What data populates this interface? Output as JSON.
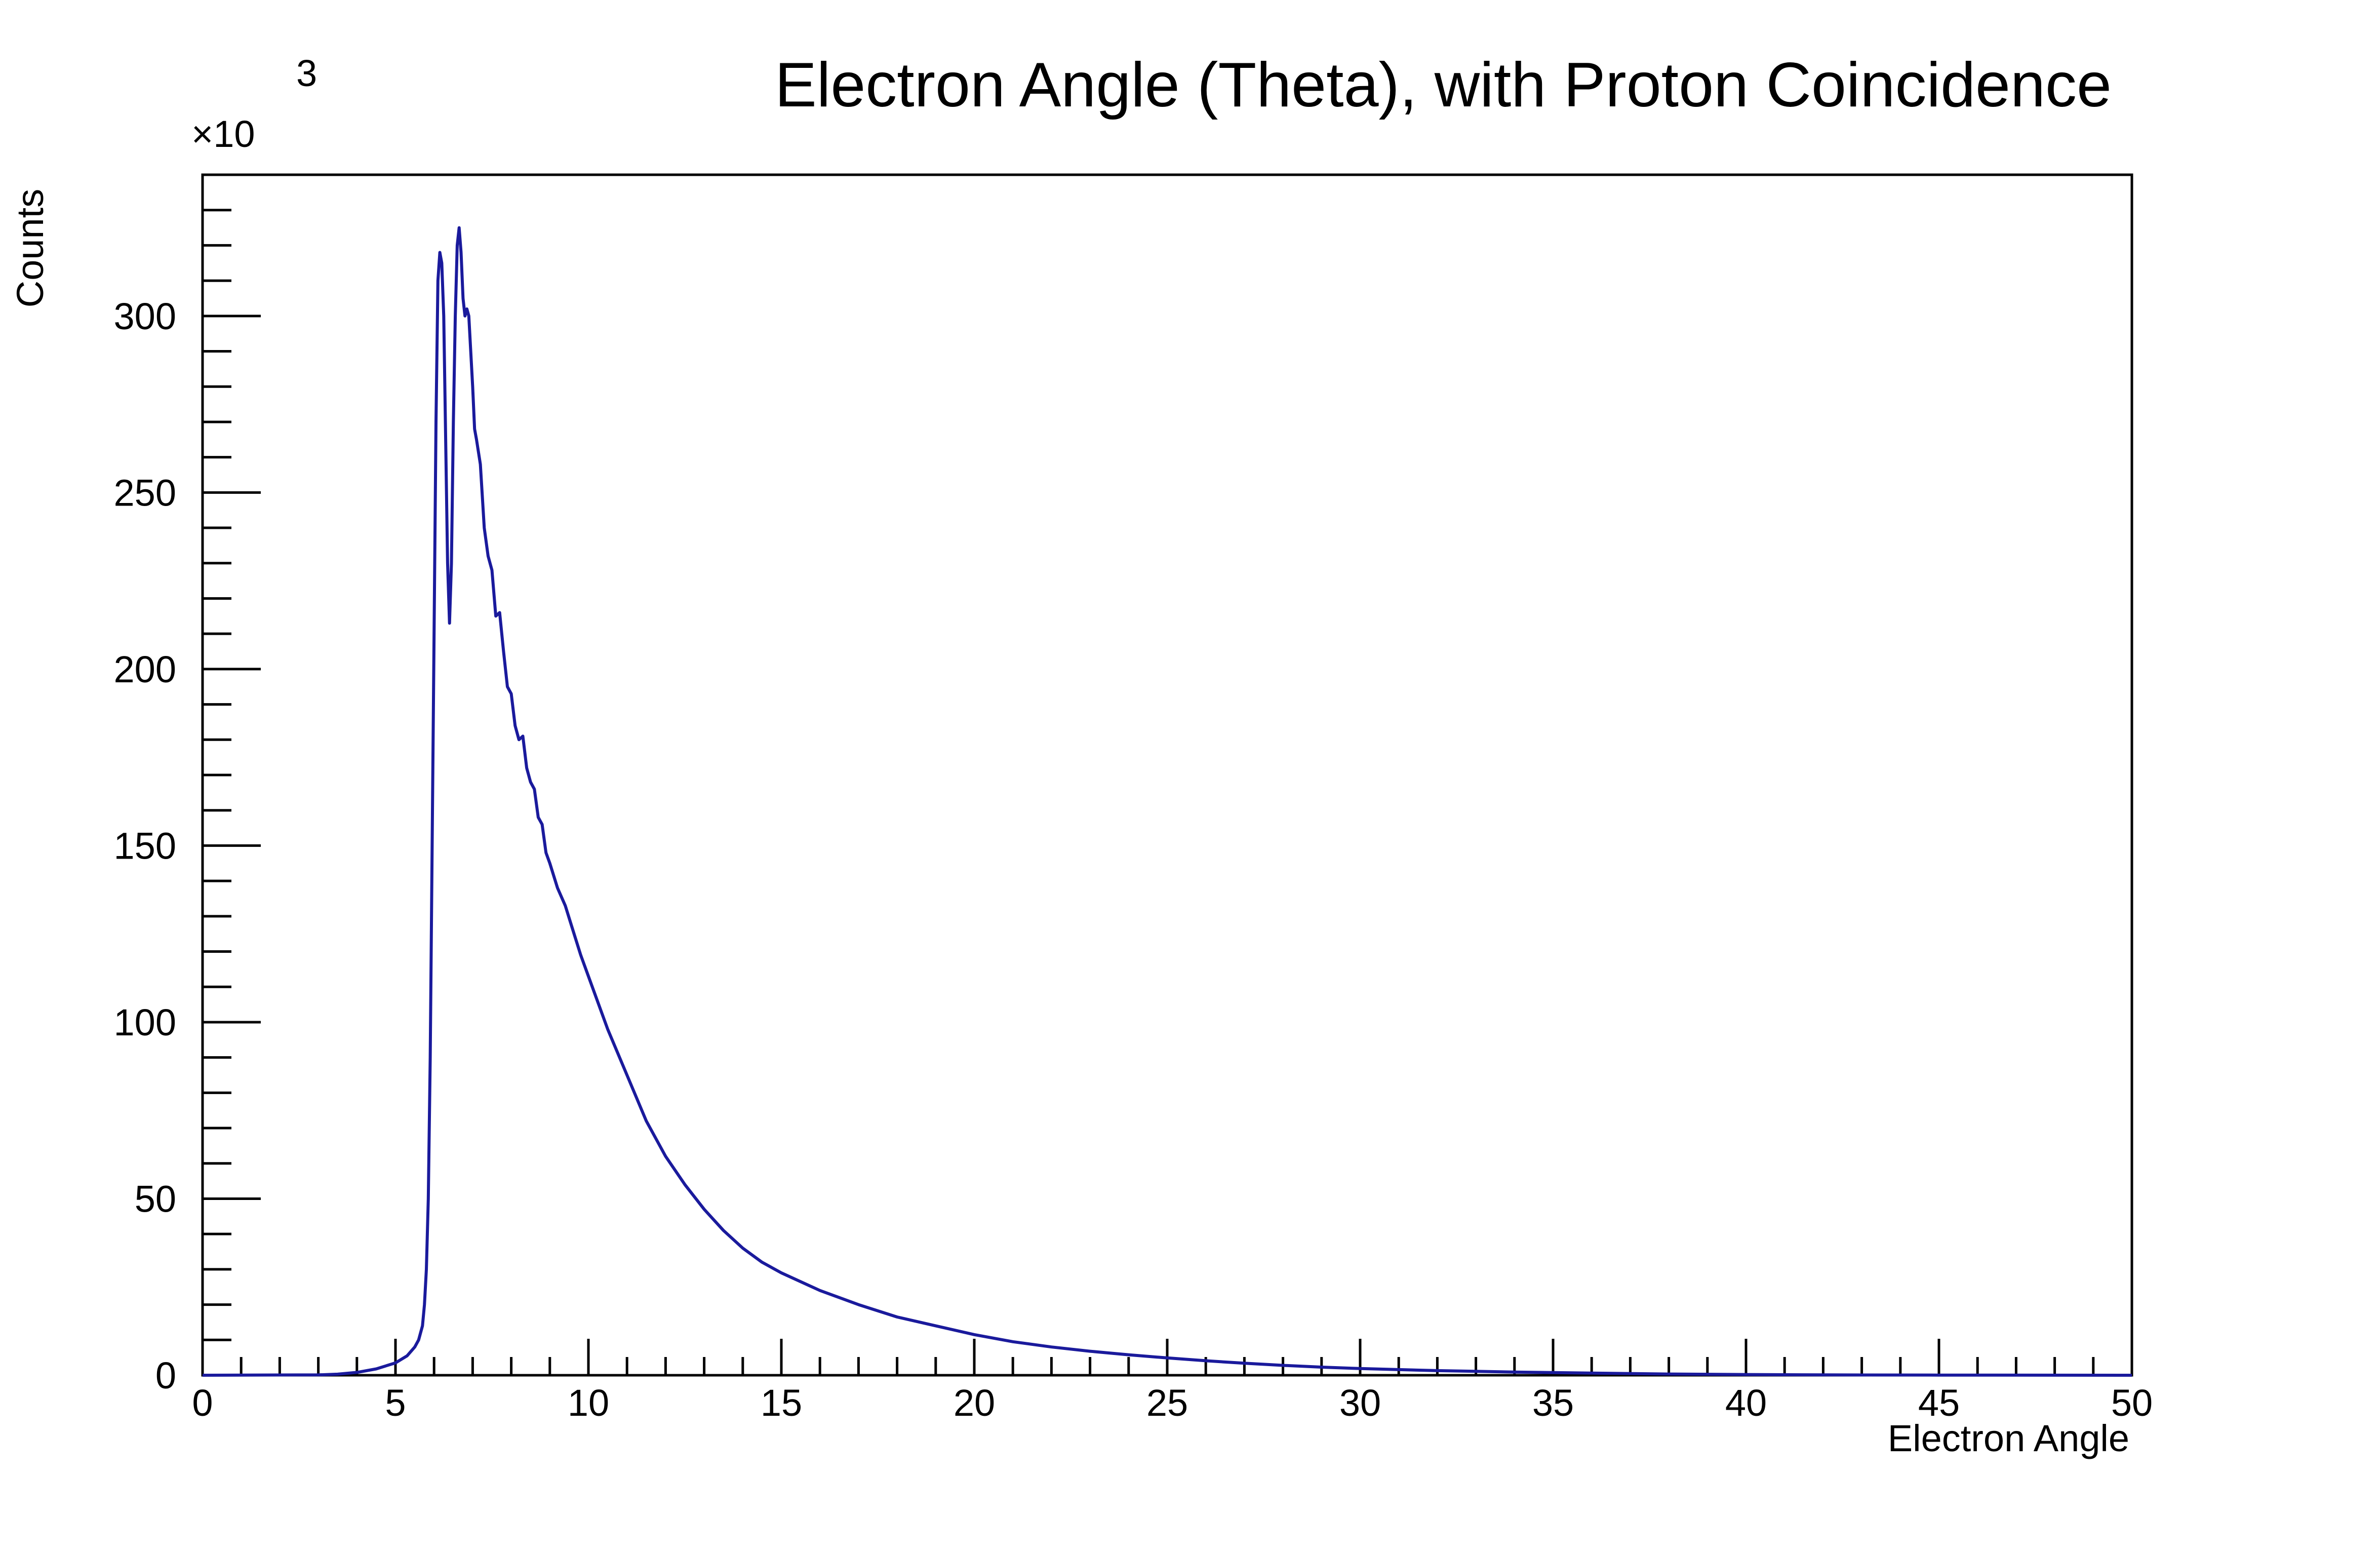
{
  "colors": {
    "series": "#1a1a9c",
    "axis": "#000000",
    "background": "#ffffff"
  },
  "chart_data": {
    "type": "line",
    "title": "Electron Angle (Theta), with Proton Coincidence",
    "xlabel": "Electron Angle",
    "ylabel": "Counts",
    "y_multiplier_base": "×10",
    "y_multiplier_exponent": "3",
    "xlim": [
      0,
      50
    ],
    "ylim": [
      0,
      340
    ],
    "grid": false,
    "legend": "none",
    "x_ticks": [
      "0",
      "5",
      "10",
      "15",
      "20",
      "25",
      "30",
      "35",
      "40",
      "45",
      "50"
    ],
    "y_ticks": [
      "0",
      "50",
      "100",
      "150",
      "200",
      "250",
      "300"
    ],
    "series": [
      {
        "name": "Electron Angle",
        "x": [
          0,
          3.0,
          3.5,
          4.0,
          4.5,
          5.0,
          5.3,
          5.5,
          5.6,
          5.7,
          5.75,
          5.8,
          5.85,
          5.9,
          5.95,
          6.0,
          6.05,
          6.1,
          6.15,
          6.2,
          6.25,
          6.3,
          6.35,
          6.4,
          6.45,
          6.5,
          6.55,
          6.6,
          6.65,
          6.7,
          6.75,
          6.8,
          6.85,
          6.9,
          6.95,
          7.0,
          7.05,
          7.1,
          7.2,
          7.3,
          7.4,
          7.5,
          7.6,
          7.7,
          7.8,
          7.9,
          8.0,
          8.1,
          8.2,
          8.3,
          8.4,
          8.5,
          8.6,
          8.7,
          8.8,
          8.9,
          9.0,
          9.2,
          9.4,
          9.6,
          9.8,
          10.0,
          10.5,
          11.0,
          11.5,
          12.0,
          12.5,
          13.0,
          13.5,
          14.0,
          14.5,
          15.0,
          16.0,
          17.0,
          18.0,
          19.0,
          20.0,
          21.0,
          22.0,
          23.0,
          24.0,
          25.0,
          26.0,
          27.0,
          28.0,
          29.0,
          30.0,
          32.0,
          34.0,
          36.0,
          38.0,
          40.0,
          42.0,
          45.0,
          50.0
        ],
        "y": [
          0,
          0.1,
          0.3,
          0.8,
          1.8,
          3.5,
          5.5,
          8,
          10,
          14,
          20,
          30,
          50,
          90,
          150,
          210,
          270,
          310,
          318,
          315,
          300,
          265,
          230,
          213,
          230,
          270,
          300,
          320,
          325,
          318,
          305,
          300,
          302,
          300,
          290,
          280,
          268,
          265,
          258,
          240,
          232,
          228,
          215,
          216,
          205,
          195,
          193,
          184,
          180,
          181,
          172,
          168,
          166,
          158,
          156,
          148,
          145,
          138,
          133,
          126,
          119,
          113,
          98,
          85,
          72,
          62,
          54,
          47,
          41,
          36,
          32,
          29,
          24,
          20,
          16.5,
          14,
          11.5,
          9.5,
          8,
          6.8,
          5.8,
          4.9,
          4.1,
          3.4,
          2.8,
          2.3,
          1.9,
          1.3,
          0.9,
          0.6,
          0.35,
          0.2,
          0.1,
          0.05,
          0
        ]
      }
    ]
  }
}
